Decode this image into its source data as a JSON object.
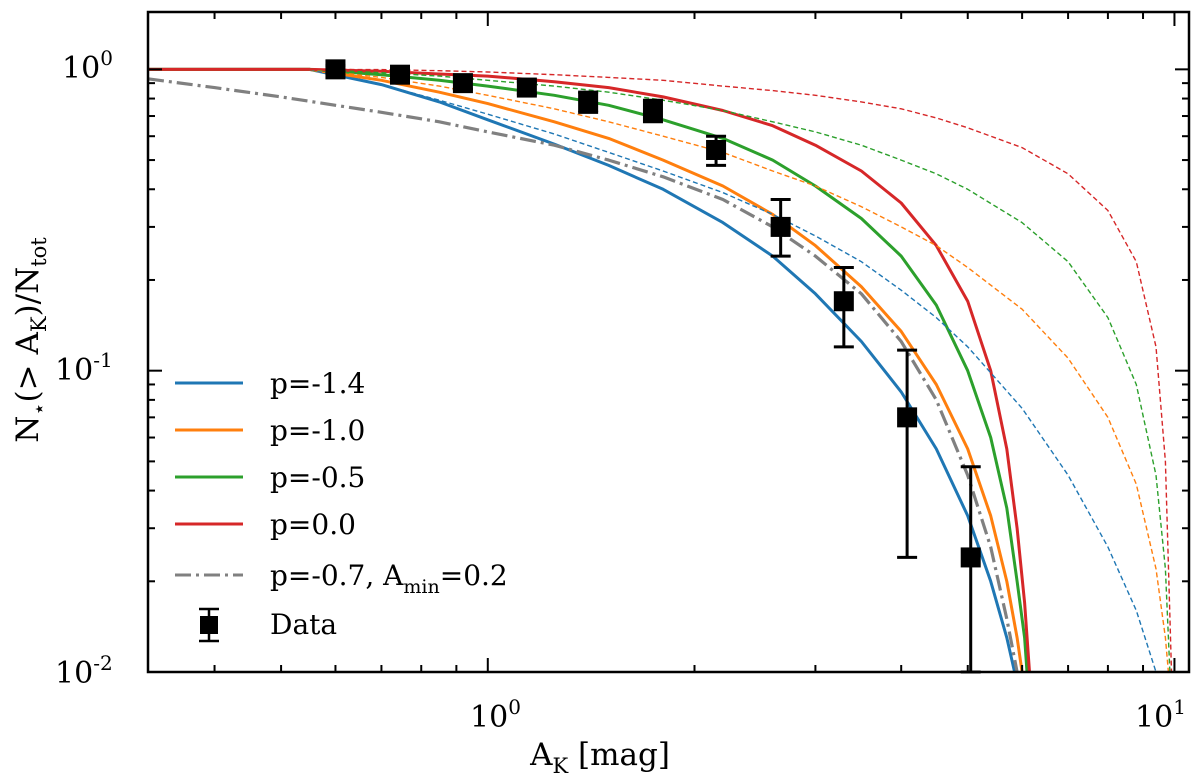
{
  "chart_data": {
    "type": "line",
    "xscale": "log",
    "yscale": "log",
    "xlim": [
      0.32,
      10.5
    ],
    "ylim": [
      0.01,
      1.55
    ],
    "xlabel": {
      "main": "A",
      "sub": "K",
      "rest": " [mag]"
    },
    "ylabel": {
      "p1": "N",
      "p2": "⋆",
      "p3": "(> A",
      "p4": "K",
      "p5": ")/N",
      "p6": "tot"
    },
    "x_ticks": [
      {
        "base": "10",
        "exp": "0",
        "value": 1
      },
      {
        "base": "10",
        "exp": "1",
        "value": 10
      }
    ],
    "y_ticks": [
      {
        "base": "10",
        "exp": "0",
        "value": 1
      },
      {
        "base": "10",
        "exp": "-1",
        "value": 0.1
      },
      {
        "base": "10",
        "exp": "-2",
        "value": 0.01
      }
    ],
    "colors": {
      "p_-1.4": "#1f77b4",
      "p_-1.0": "#ff7f0e",
      "p_-0.5": "#2ca02c",
      "p_0.0": "#d62728",
      "p_-0.7_amin": "#808080",
      "data": "#000000"
    },
    "series": [
      {
        "name": "p=-1.4",
        "color_key": "p_-1.4",
        "style": "solid",
        "points": [
          [
            0.32,
            1.0
          ],
          [
            0.55,
            1.0
          ],
          [
            0.7,
            0.89
          ],
          [
            0.85,
            0.78
          ],
          [
            1.0,
            0.68
          ],
          [
            1.25,
            0.565
          ],
          [
            1.5,
            0.48
          ],
          [
            1.8,
            0.4
          ],
          [
            2.2,
            0.31
          ],
          [
            2.6,
            0.24
          ],
          [
            3.0,
            0.18
          ],
          [
            3.5,
            0.125
          ],
          [
            4.0,
            0.085
          ],
          [
            4.5,
            0.055
          ],
          [
            5.0,
            0.033
          ],
          [
            5.4,
            0.02
          ],
          [
            5.7,
            0.013
          ],
          [
            5.85,
            0.01
          ]
        ]
      },
      {
        "name": "p=-1.0",
        "color_key": "p_-1.0",
        "style": "solid",
        "points": [
          [
            0.32,
            1.0
          ],
          [
            0.55,
            1.0
          ],
          [
            0.7,
            0.92
          ],
          [
            0.85,
            0.84
          ],
          [
            1.0,
            0.77
          ],
          [
            1.25,
            0.67
          ],
          [
            1.5,
            0.59
          ],
          [
            1.8,
            0.5
          ],
          [
            2.2,
            0.41
          ],
          [
            2.6,
            0.33
          ],
          [
            3.0,
            0.26
          ],
          [
            3.5,
            0.19
          ],
          [
            4.0,
            0.135
          ],
          [
            4.5,
            0.09
          ],
          [
            5.0,
            0.055
          ],
          [
            5.4,
            0.033
          ],
          [
            5.7,
            0.02
          ],
          [
            5.9,
            0.013
          ],
          [
            6.0,
            0.01
          ]
        ]
      },
      {
        "name": "p=-0.5",
        "color_key": "p_-0.5",
        "style": "solid",
        "points": [
          [
            0.32,
            1.0
          ],
          [
            0.55,
            1.0
          ],
          [
            0.7,
            0.96
          ],
          [
            0.85,
            0.92
          ],
          [
            1.0,
            0.88
          ],
          [
            1.25,
            0.82
          ],
          [
            1.5,
            0.76
          ],
          [
            1.8,
            0.68
          ],
          [
            2.2,
            0.59
          ],
          [
            2.6,
            0.5
          ],
          [
            3.0,
            0.41
          ],
          [
            3.5,
            0.32
          ],
          [
            4.0,
            0.24
          ],
          [
            4.5,
            0.165
          ],
          [
            5.0,
            0.1
          ],
          [
            5.4,
            0.06
          ],
          [
            5.7,
            0.035
          ],
          [
            5.9,
            0.02
          ],
          [
            6.05,
            0.013
          ],
          [
            6.1,
            0.01
          ]
        ]
      },
      {
        "name": "p=0.0",
        "color_key": "p_0.0",
        "style": "solid",
        "points": [
          [
            0.32,
            1.0
          ],
          [
            0.55,
            1.0
          ],
          [
            0.7,
            0.985
          ],
          [
            0.85,
            0.965
          ],
          [
            1.0,
            0.95
          ],
          [
            1.25,
            0.91
          ],
          [
            1.5,
            0.87
          ],
          [
            1.8,
            0.81
          ],
          [
            2.2,
            0.73
          ],
          [
            2.6,
            0.65
          ],
          [
            3.0,
            0.56
          ],
          [
            3.5,
            0.46
          ],
          [
            4.0,
            0.36
          ],
          [
            4.5,
            0.26
          ],
          [
            5.0,
            0.17
          ],
          [
            5.4,
            0.1
          ],
          [
            5.7,
            0.055
          ],
          [
            5.9,
            0.03
          ],
          [
            6.05,
            0.017
          ],
          [
            6.15,
            0.01
          ]
        ]
      },
      {
        "name": "p=-0.7, A_min=0.2",
        "color_key": "p_-0.7_amin",
        "style": "dashdot",
        "points": [
          [
            0.32,
            0.93
          ],
          [
            0.4,
            0.87
          ],
          [
            0.5,
            0.81
          ],
          [
            0.6,
            0.76
          ],
          [
            0.7,
            0.72
          ],
          [
            0.85,
            0.67
          ],
          [
            1.0,
            0.62
          ],
          [
            1.25,
            0.56
          ],
          [
            1.5,
            0.5
          ],
          [
            1.8,
            0.44
          ],
          [
            2.2,
            0.37
          ],
          [
            2.6,
            0.3
          ],
          [
            3.0,
            0.24
          ],
          [
            3.5,
            0.18
          ],
          [
            4.0,
            0.125
          ],
          [
            4.5,
            0.08
          ],
          [
            5.0,
            0.045
          ],
          [
            5.4,
            0.026
          ],
          [
            5.7,
            0.015
          ],
          [
            5.9,
            0.01
          ]
        ]
      },
      {
        "name": "p=-1.4 (dashed)",
        "color_key": "p_-1.4",
        "style": "dashed-thin",
        "points": [
          [
            0.55,
            1.0
          ],
          [
            0.7,
            0.89
          ],
          [
            0.85,
            0.79
          ],
          [
            1.0,
            0.71
          ],
          [
            1.25,
            0.61
          ],
          [
            1.5,
            0.53
          ],
          [
            1.8,
            0.46
          ],
          [
            2.2,
            0.39
          ],
          [
            2.6,
            0.33
          ],
          [
            3.0,
            0.28
          ],
          [
            3.5,
            0.23
          ],
          [
            4.0,
            0.185
          ],
          [
            4.5,
            0.15
          ],
          [
            5.0,
            0.12
          ],
          [
            6.0,
            0.075
          ],
          [
            7.0,
            0.045
          ],
          [
            8.0,
            0.026
          ],
          [
            8.8,
            0.016
          ],
          [
            9.4,
            0.01
          ]
        ]
      },
      {
        "name": "p=-1.0 (dashed)",
        "color_key": "p_-1.0",
        "style": "dashed-thin",
        "points": [
          [
            0.55,
            1.0
          ],
          [
            0.7,
            0.94
          ],
          [
            0.85,
            0.88
          ],
          [
            1.0,
            0.82
          ],
          [
            1.25,
            0.74
          ],
          [
            1.5,
            0.67
          ],
          [
            1.8,
            0.6
          ],
          [
            2.2,
            0.53
          ],
          [
            2.6,
            0.46
          ],
          [
            3.0,
            0.41
          ],
          [
            3.5,
            0.35
          ],
          [
            4.0,
            0.3
          ],
          [
            4.5,
            0.26
          ],
          [
            5.0,
            0.22
          ],
          [
            6.0,
            0.16
          ],
          [
            7.0,
            0.11
          ],
          [
            8.0,
            0.07
          ],
          [
            8.8,
            0.042
          ],
          [
            9.4,
            0.022
          ],
          [
            9.7,
            0.013
          ],
          [
            9.8,
            0.01
          ]
        ]
      },
      {
        "name": "p=-0.5 (dashed)",
        "color_key": "p_-0.5",
        "style": "dashed-thin",
        "points": [
          [
            0.55,
            1.0
          ],
          [
            0.7,
            0.975
          ],
          [
            0.85,
            0.95
          ],
          [
            1.0,
            0.92
          ],
          [
            1.25,
            0.88
          ],
          [
            1.5,
            0.84
          ],
          [
            1.8,
            0.79
          ],
          [
            2.2,
            0.73
          ],
          [
            2.6,
            0.67
          ],
          [
            3.0,
            0.62
          ],
          [
            3.5,
            0.56
          ],
          [
            4.0,
            0.5
          ],
          [
            4.5,
            0.45
          ],
          [
            5.0,
            0.4
          ],
          [
            6.0,
            0.31
          ],
          [
            7.0,
            0.23
          ],
          [
            8.0,
            0.15
          ],
          [
            8.8,
            0.09
          ],
          [
            9.4,
            0.045
          ],
          [
            9.7,
            0.022
          ],
          [
            9.85,
            0.01
          ]
        ]
      },
      {
        "name": "p=0.0 (dashed)",
        "color_key": "p_0.0",
        "style": "dashed-thin",
        "points": [
          [
            0.55,
            1.0
          ],
          [
            0.7,
            0.998
          ],
          [
            0.85,
            0.99
          ],
          [
            1.0,
            0.98
          ],
          [
            1.25,
            0.96
          ],
          [
            1.5,
            0.94
          ],
          [
            1.8,
            0.92
          ],
          [
            2.2,
            0.88
          ],
          [
            2.6,
            0.85
          ],
          [
            3.0,
            0.82
          ],
          [
            3.5,
            0.78
          ],
          [
            4.0,
            0.74
          ],
          [
            4.5,
            0.69
          ],
          [
            5.0,
            0.64
          ],
          [
            6.0,
            0.55
          ],
          [
            7.0,
            0.45
          ],
          [
            8.0,
            0.34
          ],
          [
            8.8,
            0.23
          ],
          [
            9.4,
            0.12
          ],
          [
            9.7,
            0.05
          ],
          [
            9.9,
            0.01
          ]
        ]
      }
    ],
    "data_points": {
      "name": "Data",
      "points": [
        {
          "x": 0.6,
          "y": 1.0,
          "ylo": 0.97,
          "yhi": 1.03
        },
        {
          "x": 0.745,
          "y": 0.96,
          "ylo": 0.92,
          "yhi": 1.0
        },
        {
          "x": 0.92,
          "y": 0.9,
          "ylo": 0.86,
          "yhi": 0.94
        },
        {
          "x": 1.14,
          "y": 0.87,
          "ylo": 0.83,
          "yhi": 0.91
        },
        {
          "x": 1.4,
          "y": 0.78,
          "ylo": 0.72,
          "yhi": 0.84
        },
        {
          "x": 1.74,
          "y": 0.73,
          "ylo": 0.67,
          "yhi": 0.79
        },
        {
          "x": 2.15,
          "y": 0.54,
          "ylo": 0.48,
          "yhi": 0.6
        },
        {
          "x": 2.67,
          "y": 0.3,
          "ylo": 0.24,
          "yhi": 0.37
        },
        {
          "x": 3.3,
          "y": 0.17,
          "ylo": 0.12,
          "yhi": 0.22
        },
        {
          "x": 4.08,
          "y": 0.07,
          "ylo": 0.024,
          "yhi": 0.117
        },
        {
          "x": 5.05,
          "y": 0.024,
          "ylo": 0.01,
          "yhi": 0.048
        }
      ]
    },
    "legend": {
      "position": "bottom-left",
      "entries": [
        {
          "label": "p=-1.4",
          "color_key": "p_-1.4",
          "style": "solid"
        },
        {
          "label": "p=-1.0",
          "color_key": "p_-1.0",
          "style": "solid"
        },
        {
          "label": "p=-0.5",
          "color_key": "p_-0.5",
          "style": "solid"
        },
        {
          "label": "p=0.0",
          "color_key": "p_0.0",
          "style": "solid"
        },
        {
          "label": "p=-0.7, A",
          "label_sub": "min",
          "label_rest": "=0.2",
          "color_key": "p_-0.7_amin",
          "style": "dashdot"
        },
        {
          "label": "Data",
          "color_key": "data",
          "style": "marker"
        }
      ]
    }
  }
}
